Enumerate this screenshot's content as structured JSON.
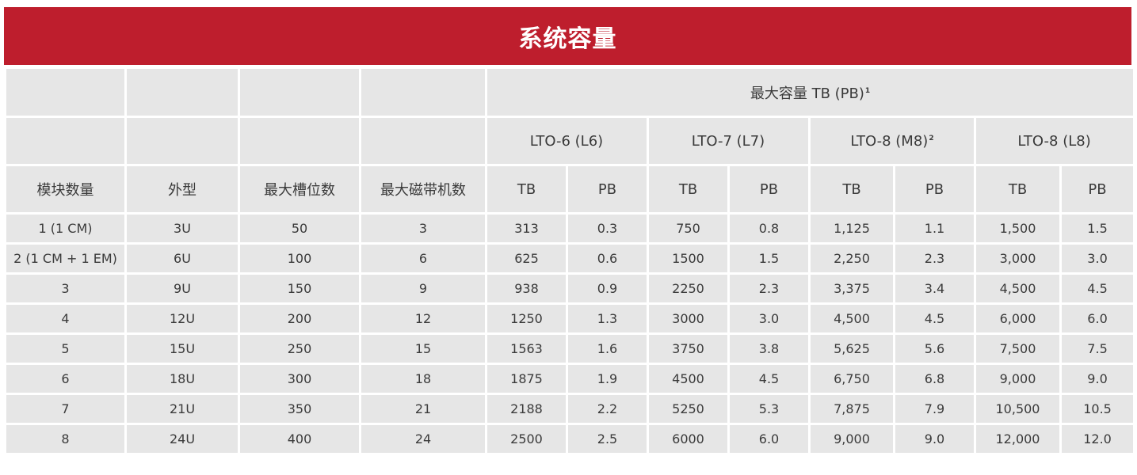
{
  "title": "系统容量",
  "header": {
    "module_count": "模块数量",
    "form_factor": "外型",
    "max_slots": "最大槽位数",
    "max_drives": "最大磁带机数",
    "max_capacity": "最大容量 TB (PB)",
    "max_capacity_note": "1",
    "generations": [
      {
        "label": "LTO-6 (L6)",
        "note": ""
      },
      {
        "label": "LTO-7 (L7)",
        "note": ""
      },
      {
        "label": "LTO-8 (M8)",
        "note": "2"
      },
      {
        "label": "LTO-8 (L8)",
        "note": ""
      }
    ],
    "tb": "TB",
    "pb": "PB"
  },
  "rows": [
    [
      "1 (1 CM)",
      "3U",
      "50",
      "3",
      "313",
      "0.3",
      "750",
      "0.8",
      "1,125",
      "1.1",
      "1,500",
      "1.5"
    ],
    [
      "2 (1 CM + 1 EM)",
      "6U",
      "100",
      "6",
      "625",
      "0.6",
      "1500",
      "1.5",
      "2,250",
      "2.3",
      "3,000",
      "3.0"
    ],
    [
      "3",
      "9U",
      "150",
      "9",
      "938",
      "0.9",
      "2250",
      "2.3",
      "3,375",
      "3.4",
      "4,500",
      "4.5"
    ],
    [
      "4",
      "12U",
      "200",
      "12",
      "1250",
      "1.3",
      "3000",
      "3.0",
      "4,500",
      "4.5",
      "6,000",
      "6.0"
    ],
    [
      "5",
      "15U",
      "250",
      "15",
      "1563",
      "1.6",
      "3750",
      "3.8",
      "5,625",
      "5.6",
      "7,500",
      "7.5"
    ],
    [
      "6",
      "18U",
      "300",
      "18",
      "1875",
      "1.9",
      "4500",
      "4.5",
      "6,750",
      "6.8",
      "9,000",
      "9.0"
    ],
    [
      "7",
      "21U",
      "350",
      "21",
      "2188",
      "2.2",
      "5250",
      "5.3",
      "7,875",
      "7.9",
      "10,500",
      "10.5"
    ],
    [
      "8",
      "24U",
      "400",
      "24",
      "2500",
      "2.5",
      "6000",
      "6.0",
      "9,000",
      "9.0",
      "12,000",
      "12.0"
    ]
  ]
}
